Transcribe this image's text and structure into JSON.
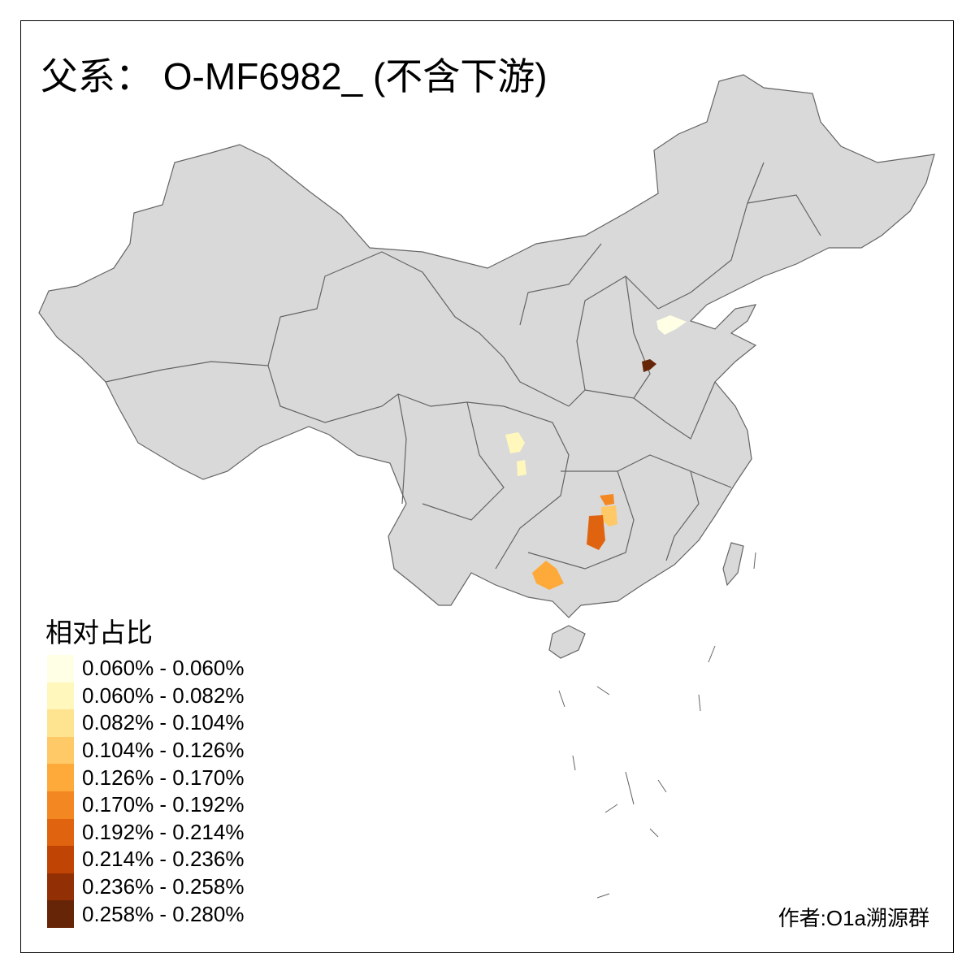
{
  "title": "父系： O-MF6982_ (不含下游)",
  "legend": {
    "title": "相对占比",
    "items": [
      {
        "label": "0.060% - 0.060%",
        "color": "#FFFFE5"
      },
      {
        "label": "0.060% - 0.082%",
        "color": "#FFF7BC"
      },
      {
        "label": "0.082% - 0.104%",
        "color": "#FEE391"
      },
      {
        "label": "0.104% - 0.126%",
        "color": "#FEC966"
      },
      {
        "label": "0.126% - 0.170%",
        "color": "#FEAA3A"
      },
      {
        "label": "0.170% - 0.192%",
        "color": "#F38722"
      },
      {
        "label": "0.192% - 0.214%",
        "color": "#E0640F"
      },
      {
        "label": "0.214% - 0.236%",
        "color": "#C04403"
      },
      {
        "label": "0.236% - 0.258%",
        "color": "#932F05"
      },
      {
        "label": "0.258% - 0.280%",
        "color": "#662506"
      }
    ]
  },
  "map": {
    "base_color": "#D9D9D9",
    "border_color": "#646464"
  },
  "credit": "作者:O1a溯源群"
}
